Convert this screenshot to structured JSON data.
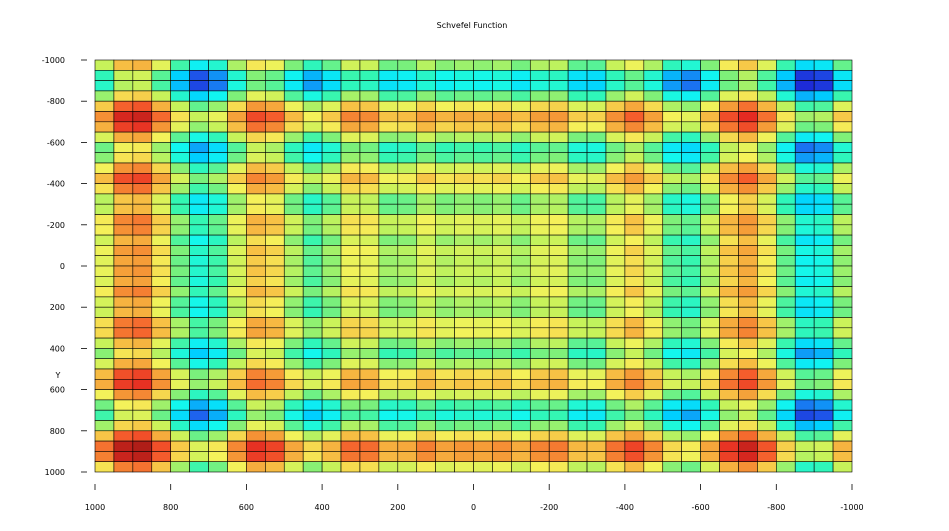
{
  "chart_data": {
    "type": "heatmap",
    "title": "Schvefel Function",
    "xlabel": "",
    "ylabel": "Y",
    "function": "schwefel",
    "x_range": [
      1000,
      -1000
    ],
    "y_range": [
      -1000,
      1000
    ],
    "grid_cells_x": 40,
    "grid_cells_y": 40,
    "x_ticks": [
      "1000",
      "800",
      "600",
      "400",
      "200",
      "0",
      "-200",
      "-400",
      "-600",
      "-800",
      "-1000"
    ],
    "y_ticks": [
      "-1000",
      "-800",
      "-600",
      "-400",
      "-200",
      "0",
      "200",
      "400",
      "600",
      "800",
      "1000"
    ],
    "colorscale": [
      "#1d2bd8",
      "#1e64ef",
      "#00cfff",
      "#12f7f0",
      "#33f6b3",
      "#7cf07a",
      "#c7f25a",
      "#f5f25a",
      "#f7c245",
      "#f59a37",
      "#f55d2c",
      "#e52a22",
      "#b01e18"
    ],
    "cell_border_color": "#000000"
  }
}
